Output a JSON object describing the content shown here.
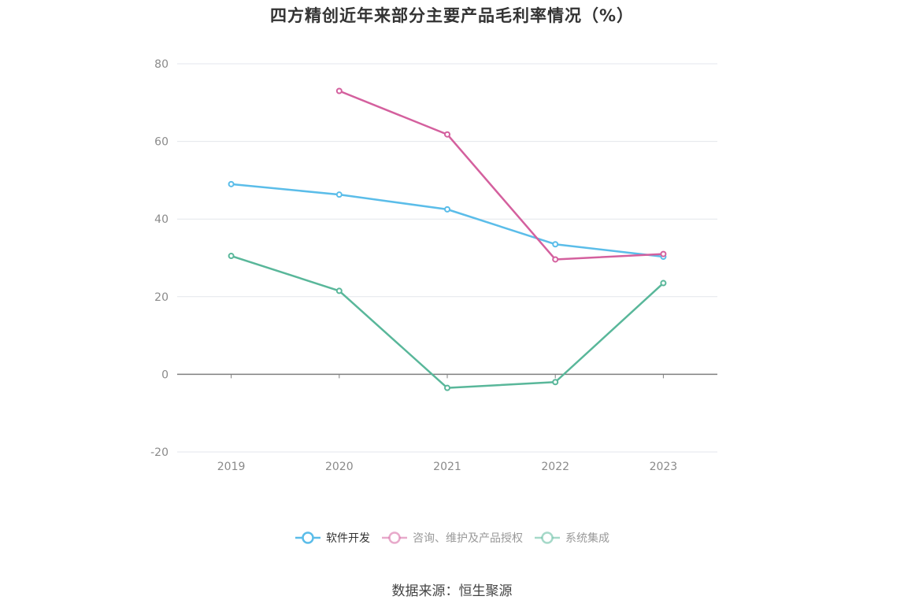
{
  "chart_data": {
    "type": "line",
    "title": "四方精创近年来部分主要产品毛利率情况（%）",
    "categories": [
      "2019",
      "2020",
      "2021",
      "2022",
      "2023"
    ],
    "ylim": [
      -20,
      80
    ],
    "yticks": [
      -20,
      0,
      20,
      40,
      60,
      80
    ],
    "grid": true,
    "legend_position": "bottom",
    "series": [
      {
        "name": "软件开发",
        "color": "#5bbde9",
        "values": [
          49.0,
          46.3,
          42.5,
          33.5,
          30.3
        ]
      },
      {
        "name": "咨询、维护及产品授权",
        "color": "#d4609e",
        "values": [
          null,
          73.0,
          61.8,
          29.6,
          31.0
        ]
      },
      {
        "name": "系统集成",
        "color": "#59b79a",
        "values": [
          30.5,
          21.5,
          -3.5,
          -2.0,
          23.5
        ]
      }
    ]
  },
  "source": "数据来源：恒生聚源"
}
